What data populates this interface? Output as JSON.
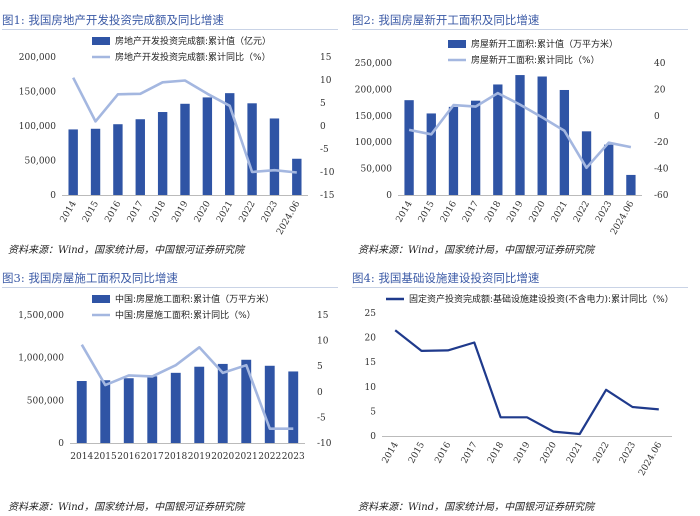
{
  "charts": [
    {
      "title": "图1:  我国房地产开发投资完成额及同比增速",
      "source": "资料来源：Wind，国家统计局，中国银河证券研究院",
      "chart_data": {
        "type": "bar+line",
        "categories": [
          "2014",
          "2015",
          "2016",
          "2017",
          "2018",
          "2019",
          "2020",
          "2021",
          "2022",
          "2023",
          "2024.06"
        ],
        "bar": {
          "name": "房地产开发投资完成额:累计值（亿元）",
          "values": [
            95036,
            95979,
            102581,
            109799,
            120264,
            132194,
            141443,
            147602,
            132895,
            110913,
            52529
          ]
        },
        "line": {
          "name": "房地产开发投资完成额:累计同比（%）",
          "values": [
            10.5,
            1.0,
            6.9,
            7.0,
            9.5,
            9.9,
            7.0,
            4.4,
            -10.0,
            -9.6,
            -10.1
          ]
        },
        "left_axis": {
          "min": 0,
          "max": 200000,
          "ticks": [
            "0",
            "50,000",
            "100,000",
            "150,000",
            "200,000"
          ]
        },
        "right_axis": {
          "min": -15,
          "max": 15,
          "ticks": [
            "-15",
            "-10",
            "-5",
            "0",
            "5",
            "10",
            "15"
          ]
        },
        "x_rotated": true
      }
    },
    {
      "title": "图2:  我国房屋新开工面积及同比增速",
      "source": "资料来源：Wind，国家统计局，中国银河证券研究院",
      "chart_data": {
        "type": "bar+line",
        "categories": [
          "2014",
          "2015",
          "2016",
          "2017",
          "2018",
          "2019",
          "2020",
          "2021",
          "2022",
          "2023",
          "2024.06"
        ],
        "bar": {
          "name": "房屋新开工面积:累计值（万平方米）",
          "values": [
            179592,
            154454,
            166928,
            178654,
            209342,
            227154,
            224433,
            198895,
            120587,
            95376,
            38023
          ]
        },
        "line": {
          "name": "房屋新开工面积:累计同比（%）",
          "values": [
            -10.7,
            -14.0,
            8.1,
            7.0,
            17.2,
            8.5,
            -1.2,
            -11.4,
            -39.4,
            -20.4,
            -23.7
          ]
        },
        "left_axis": {
          "min": 0,
          "max": 250000,
          "ticks": [
            "0",
            "50,000",
            "100,000",
            "150,000",
            "200,000",
            "250,000"
          ]
        },
        "right_axis": {
          "min": -60,
          "max": 40,
          "ticks": [
            "-60",
            "-40",
            "-20",
            "0",
            "20",
            "40"
          ]
        },
        "x_rotated": true
      }
    },
    {
      "title": "图3:  我国房屋施工面积及同比增速",
      "source": "资料来源：Wind，国家统计局，中国银河证券研究院",
      "chart_data": {
        "type": "bar+line",
        "categories": [
          "2014",
          "2015",
          "2016",
          "2017",
          "2018",
          "2019",
          "2020",
          "2021",
          "2022",
          "2023"
        ],
        "bar": {
          "name": "中国:房屋施工面积:累计值（万平方米）",
          "values": [
            726482,
            735693,
            758975,
            781484,
            822300,
            893821,
            926759,
            975387,
            904999,
            838364
          ]
        },
        "line": {
          "name": "中国:房屋施工面积:累计同比（%）",
          "values": [
            9.2,
            1.3,
            3.2,
            3.0,
            5.2,
            8.7,
            3.7,
            5.2,
            -7.2,
            -7.2
          ]
        },
        "left_axis": {
          "min": 0,
          "max": 1500000,
          "ticks": [
            "0",
            "500,000",
            "1,000,000",
            "1,500,000"
          ]
        },
        "right_axis": {
          "min": -10,
          "max": 15,
          "ticks": [
            "-10",
            "-5",
            "0",
            "5",
            "10",
            "15"
          ]
        },
        "x_rotated": false
      }
    },
    {
      "title": "图4:  我国基础设施建设投资同比增速",
      "source": "资料来源：Wind，国家统计局，中国银河证券研究院",
      "chart_data": {
        "type": "line",
        "categories": [
          "2014",
          "2015",
          "2016",
          "2017",
          "2018",
          "2019",
          "2020",
          "2021",
          "2022",
          "2023",
          "2024.06"
        ],
        "line": {
          "name": "固定资产投资完成额:基础设施建设投资(不含电力):累计同比（%）",
          "values": [
            21.5,
            17.3,
            17.4,
            19.0,
            3.8,
            3.8,
            0.9,
            0.4,
            9.4,
            5.9,
            5.4
          ]
        },
        "left_axis": {
          "min": 0,
          "max": 25,
          "ticks": [
            "0",
            "5",
            "10",
            "15",
            "20",
            "25"
          ]
        },
        "x_rotated": true
      }
    }
  ],
  "colors": {
    "bar": "#2f54a5",
    "line": "#a4b7e0",
    "line_dark": "#1f3a8c",
    "axis": "#bbbbbb",
    "title": "#3b5aa6"
  }
}
